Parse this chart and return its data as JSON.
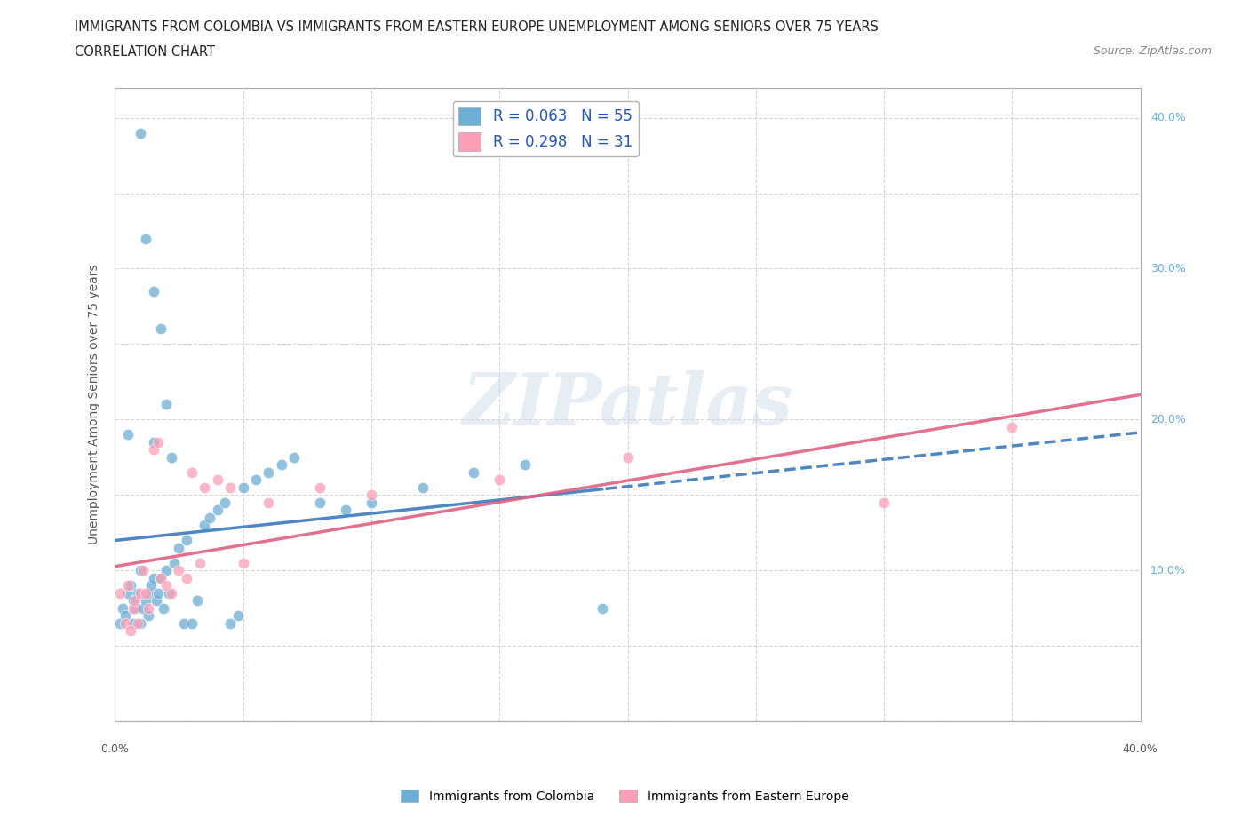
{
  "title_line1": "IMMIGRANTS FROM COLOMBIA VS IMMIGRANTS FROM EASTERN EUROPE UNEMPLOYMENT AMONG SENIORS OVER 75 YEARS",
  "title_line2": "CORRELATION CHART",
  "source": "Source: ZipAtlas.com",
  "ylabel": "Unemployment Among Seniors over 75 years",
  "watermark": "ZIPatlas",
  "colombia_color": "#6baed6",
  "eastern_europe_color": "#fa9fb5",
  "colombia_line_color": "#3a7abf",
  "eastern_europe_line_color": "#e06080",
  "colombia_R": 0.063,
  "colombia_N": 55,
  "eastern_europe_R": 0.298,
  "eastern_europe_N": 31,
  "colombia_x": [
    0.002,
    0.003,
    0.004,
    0.005,
    0.005,
    0.006,
    0.007,
    0.007,
    0.008,
    0.009,
    0.01,
    0.01,
    0.011,
    0.012,
    0.013,
    0.013,
    0.014,
    0.015,
    0.015,
    0.016,
    0.017,
    0.018,
    0.019,
    0.02,
    0.021,
    0.022,
    0.023,
    0.025,
    0.027,
    0.028,
    0.03,
    0.032,
    0.035,
    0.037,
    0.04,
    0.043,
    0.045,
    0.048,
    0.05,
    0.055,
    0.06,
    0.065,
    0.07,
    0.08,
    0.09,
    0.1,
    0.12,
    0.14,
    0.16,
    0.19,
    0.01,
    0.012,
    0.015,
    0.018,
    0.02
  ],
  "colombia_y": [
    0.065,
    0.075,
    0.07,
    0.085,
    0.19,
    0.09,
    0.065,
    0.08,
    0.075,
    0.085,
    0.1,
    0.065,
    0.075,
    0.08,
    0.085,
    0.07,
    0.09,
    0.095,
    0.185,
    0.08,
    0.085,
    0.095,
    0.075,
    0.1,
    0.085,
    0.175,
    0.105,
    0.115,
    0.065,
    0.12,
    0.065,
    0.08,
    0.13,
    0.135,
    0.14,
    0.145,
    0.065,
    0.07,
    0.155,
    0.16,
    0.165,
    0.17,
    0.175,
    0.145,
    0.14,
    0.145,
    0.155,
    0.165,
    0.17,
    0.075,
    0.39,
    0.32,
    0.285,
    0.26,
    0.21
  ],
  "eastern_x": [
    0.002,
    0.004,
    0.005,
    0.006,
    0.007,
    0.008,
    0.009,
    0.01,
    0.011,
    0.012,
    0.013,
    0.015,
    0.017,
    0.018,
    0.02,
    0.022,
    0.025,
    0.028,
    0.03,
    0.033,
    0.035,
    0.04,
    0.045,
    0.05,
    0.06,
    0.08,
    0.1,
    0.15,
    0.2,
    0.3,
    0.35
  ],
  "eastern_y": [
    0.085,
    0.065,
    0.09,
    0.06,
    0.075,
    0.08,
    0.065,
    0.085,
    0.1,
    0.085,
    0.075,
    0.18,
    0.185,
    0.095,
    0.09,
    0.085,
    0.1,
    0.095,
    0.165,
    0.105,
    0.155,
    0.16,
    0.155,
    0.105,
    0.145,
    0.155,
    0.15,
    0.16,
    0.175,
    0.145,
    0.195
  ],
  "right_ytick_vals": [
    0.1,
    0.2,
    0.3,
    0.4
  ],
  "right_ytick_labels": [
    "10.0%",
    "20.0%",
    "30.0%",
    "40.0%"
  ],
  "xlim": [
    0.0,
    0.4
  ],
  "ylim": [
    0.0,
    0.42
  ],
  "background_color": "#ffffff",
  "grid_color": "#cccccc"
}
